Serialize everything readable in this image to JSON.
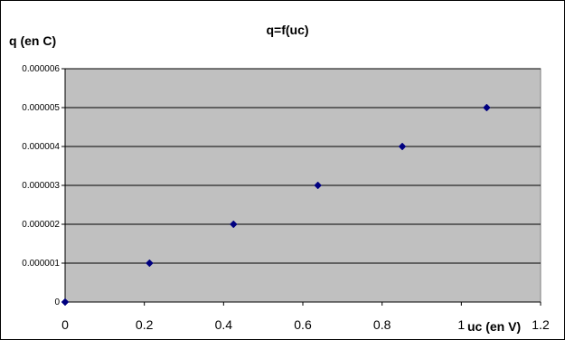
{
  "chart_data": {
    "type": "scatter",
    "title": "q=f(uc)",
    "xlabel": "uc (en V)",
    "ylabel": "q (en C)",
    "xlim": [
      0,
      1.2
    ],
    "ylim": [
      0,
      6e-06
    ],
    "x_ticks": [
      "0",
      "0.2",
      "0.4",
      "0.6",
      "0.8",
      "1",
      "1.2"
    ],
    "y_ticks": [
      "0",
      "0.000001",
      "0.000002",
      "0.000003",
      "0.000004",
      "0.000005",
      "0.000006"
    ],
    "grid": "horizontal",
    "plot_background": "#c0c0c0",
    "marker_color": "#000080",
    "marker": "diamond",
    "series": [
      {
        "x": [
          0,
          0.213,
          0.425,
          0.638,
          0.851,
          1.064
        ],
        "y": [
          0,
          1e-06,
          2e-06,
          3e-06,
          4e-06,
          5e-06
        ]
      }
    ]
  }
}
